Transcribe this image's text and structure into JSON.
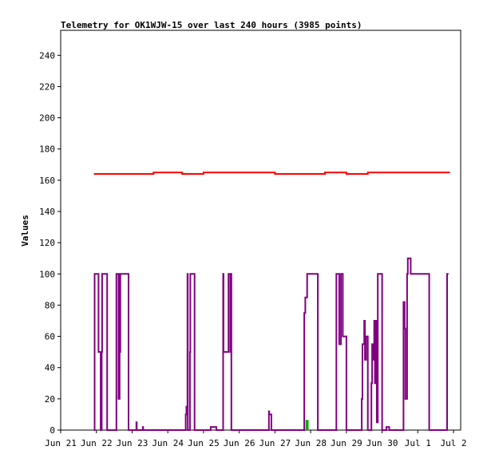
{
  "chart_data": {
    "type": "line",
    "title": "Telemetry for OK1WJW-15 over last 240 hours (3985 points)",
    "xlabel": "",
    "ylabel": "Values",
    "x_tick_labels": [
      "Jun 21",
      "Jun 22",
      "Jun 23",
      "Jun 24",
      "Jun 25",
      "Jun 26",
      "Jun 27",
      "Jun 28",
      "Jun 29",
      "Jun 30",
      "Jul 1",
      "Jul 2"
    ],
    "y_ticks": [
      0,
      20,
      40,
      60,
      80,
      100,
      120,
      140,
      160,
      180,
      200,
      220,
      240
    ],
    "xlim": [
      0,
      11.2
    ],
    "ylim": [
      0,
      256
    ],
    "grid": false,
    "legend": "none",
    "series": [
      {
        "color": "#ff0000",
        "x": [
          0.93,
          1.5,
          2.0,
          2.6,
          3.0,
          3.4,
          4.0,
          5.0,
          6.0,
          6.8,
          7.4,
          8.0,
          8.6,
          9.0,
          10.0,
          10.9
        ],
        "values": [
          164,
          164,
          164,
          165,
          165,
          164,
          165,
          165,
          164,
          164,
          165,
          164,
          165,
          165,
          165,
          165
        ]
      },
      {
        "color": "#800080",
        "x": [
          0.93,
          0.95,
          0.96,
          1.05,
          1.06,
          1.12,
          1.13,
          1.15,
          1.16,
          1.3,
          1.55,
          1.56,
          1.62,
          1.63,
          1.65,
          1.66,
          1.67,
          1.7,
          1.71,
          1.72,
          1.9,
          2.12,
          2.13,
          2.2,
          2.3,
          2.31,
          2.5,
          3.48,
          3.5,
          3.52,
          3.55,
          3.56,
          3.62,
          3.63,
          3.75,
          3.76,
          3.78,
          4.2,
          4.36,
          4.37,
          4.45,
          4.5,
          4.55,
          4.56,
          4.7,
          4.75,
          4.77,
          4.78,
          5.5,
          5.8,
          5.83,
          5.84,
          5.9,
          6.6,
          6.8,
          6.82,
          6.85,
          6.9,
          6.92,
          7.0,
          7.2,
          7.7,
          7.72,
          7.74,
          7.8,
          7.85,
          7.87,
          7.9,
          8.0,
          8.4,
          8.43,
          8.45,
          8.5,
          8.52,
          8.55,
          8.6,
          8.63,
          8.7,
          8.72,
          8.75,
          8.78,
          8.8,
          8.82,
          8.85,
          8.88,
          8.9,
          9.0,
          9.05,
          9.08,
          9.1,
          9.12,
          9.2,
          9.5,
          9.6,
          9.63,
          9.65,
          9.7,
          9.72,
          9.8,
          9.85,
          9.9,
          10.3,
          10.32,
          10.6,
          10.8,
          10.82,
          10.86
        ],
        "values": [
          0,
          100,
          100,
          100,
          50,
          0,
          0,
          50,
          100,
          0,
          0,
          100,
          20,
          20,
          100,
          50,
          100,
          100,
          100,
          100,
          0,
          5,
          0,
          0,
          2,
          0,
          0,
          0,
          10,
          15,
          100,
          0,
          50,
          100,
          0,
          0,
          0,
          2,
          0,
          0,
          0,
          0,
          100,
          50,
          100,
          50,
          100,
          0,
          0,
          0,
          12,
          10,
          0,
          0,
          0,
          75,
          85,
          100,
          100,
          100,
          0,
          0,
          100,
          100,
          55,
          100,
          100,
          60,
          0,
          0,
          20,
          55,
          70,
          45,
          60,
          0,
          0,
          30,
          55,
          45,
          70,
          30,
          70,
          5,
          100,
          100,
          0,
          0,
          0,
          0,
          2,
          0,
          0,
          82,
          65,
          20,
          100,
          110,
          100,
          100,
          100,
          100,
          0,
          0,
          0,
          100,
          100
        ]
      },
      {
        "color": "#00aa00",
        "x": [
          6.88,
          6.88,
          6.92,
          6.92
        ],
        "values": [
          0,
          6,
          6,
          0
        ]
      }
    ]
  }
}
